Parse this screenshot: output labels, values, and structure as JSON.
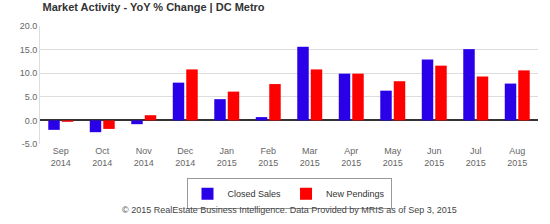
{
  "chart_data": {
    "type": "bar",
    "title": "Market Activity - YoY % Change | DC Metro",
    "categories": [
      "Sep 2014",
      "Oct 2014",
      "Nov 2014",
      "Dec 2014",
      "Jan 2015",
      "Feb 2015",
      "Mar 2015",
      "Apr 2015",
      "May 2015",
      "Jun 2015",
      "Jul 2015",
      "Aug 2015"
    ],
    "series": [
      {
        "name": "Closed Sales",
        "color": "#2a00e8",
        "values": [
          -2.0,
          -2.5,
          -0.8,
          8.0,
          4.5,
          0.7,
          15.6,
          9.9,
          6.3,
          12.9,
          15.1,
          7.8
        ]
      },
      {
        "name": "New Pendings",
        "color": "#ff0000",
        "values": [
          -0.3,
          -1.8,
          1.1,
          10.8,
          6.1,
          7.7,
          10.8,
          9.9,
          8.3,
          11.6,
          9.3,
          10.6
        ]
      }
    ],
    "ylim": [
      -5,
      20
    ],
    "yticks": [
      {
        "value": -5,
        "label": "-5.0"
      },
      {
        "value": 0,
        "label": "0.0"
      },
      {
        "value": 5,
        "label": "5.0"
      },
      {
        "value": 10,
        "label": "10.0"
      },
      {
        "value": 15,
        "label": "15.0"
      },
      {
        "value": 20,
        "label": "20.0"
      }
    ],
    "grid": true,
    "legend": "bottom",
    "annotations": [
      "© 2015 RealEstate Business Intelligence. Data Provided by MRIS as of Sep 3, 2015"
    ]
  }
}
